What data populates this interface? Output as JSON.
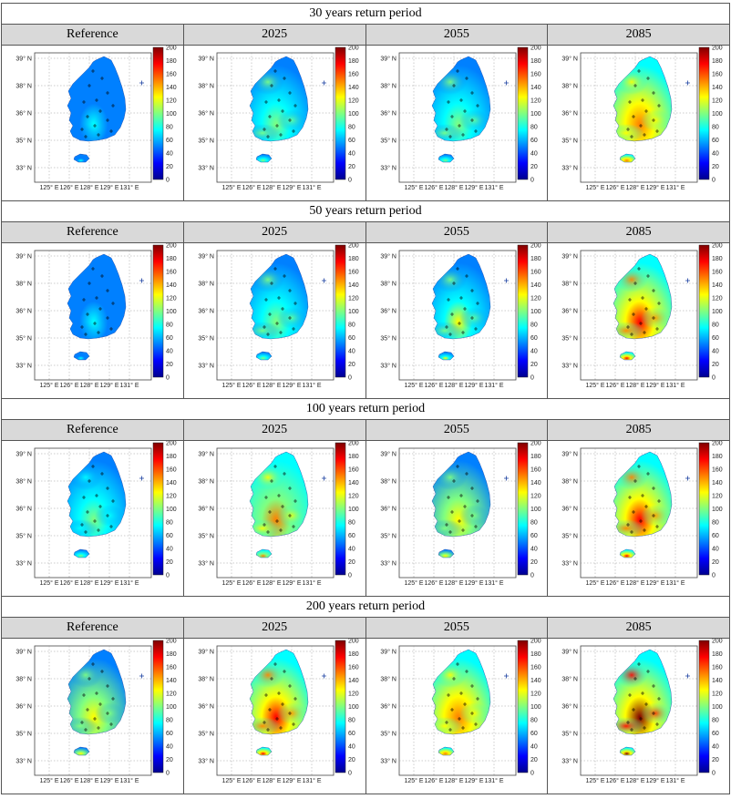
{
  "figure": {
    "column_headers": [
      "Reference",
      "2025",
      "2055",
      "2085"
    ],
    "colorbar_ticks": [
      "200",
      "180",
      "160",
      "140",
      "120",
      "100",
      "80",
      "60",
      "40",
      "20",
      "0"
    ],
    "lat_ticks": [
      "39° N",
      "38° N",
      "36° N",
      "35° N",
      "33° N"
    ],
    "lon_ticks": [
      "125° E",
      "126° E",
      "128° E",
      "129° E",
      "131° E"
    ],
    "colormap_colors": [
      "#00008f",
      "#0000ff",
      "#0080ff",
      "#00ffff",
      "#80ff80",
      "#ffff00",
      "#ff8000",
      "#ff0000",
      "#800000"
    ],
    "sections": [
      {
        "title": "30 years return period",
        "intensity": [
          0.0,
          0.3,
          0.35,
          0.7
        ]
      },
      {
        "title": "50 years return period",
        "intensity": [
          0.0,
          0.3,
          0.4,
          0.75
        ]
      },
      {
        "title": "100 years return period",
        "intensity": [
          0.25,
          0.6,
          0.5,
          0.85
        ]
      },
      {
        "title": "200 years return period",
        "intensity": [
          0.45,
          0.8,
          0.7,
          0.95
        ]
      }
    ]
  }
}
